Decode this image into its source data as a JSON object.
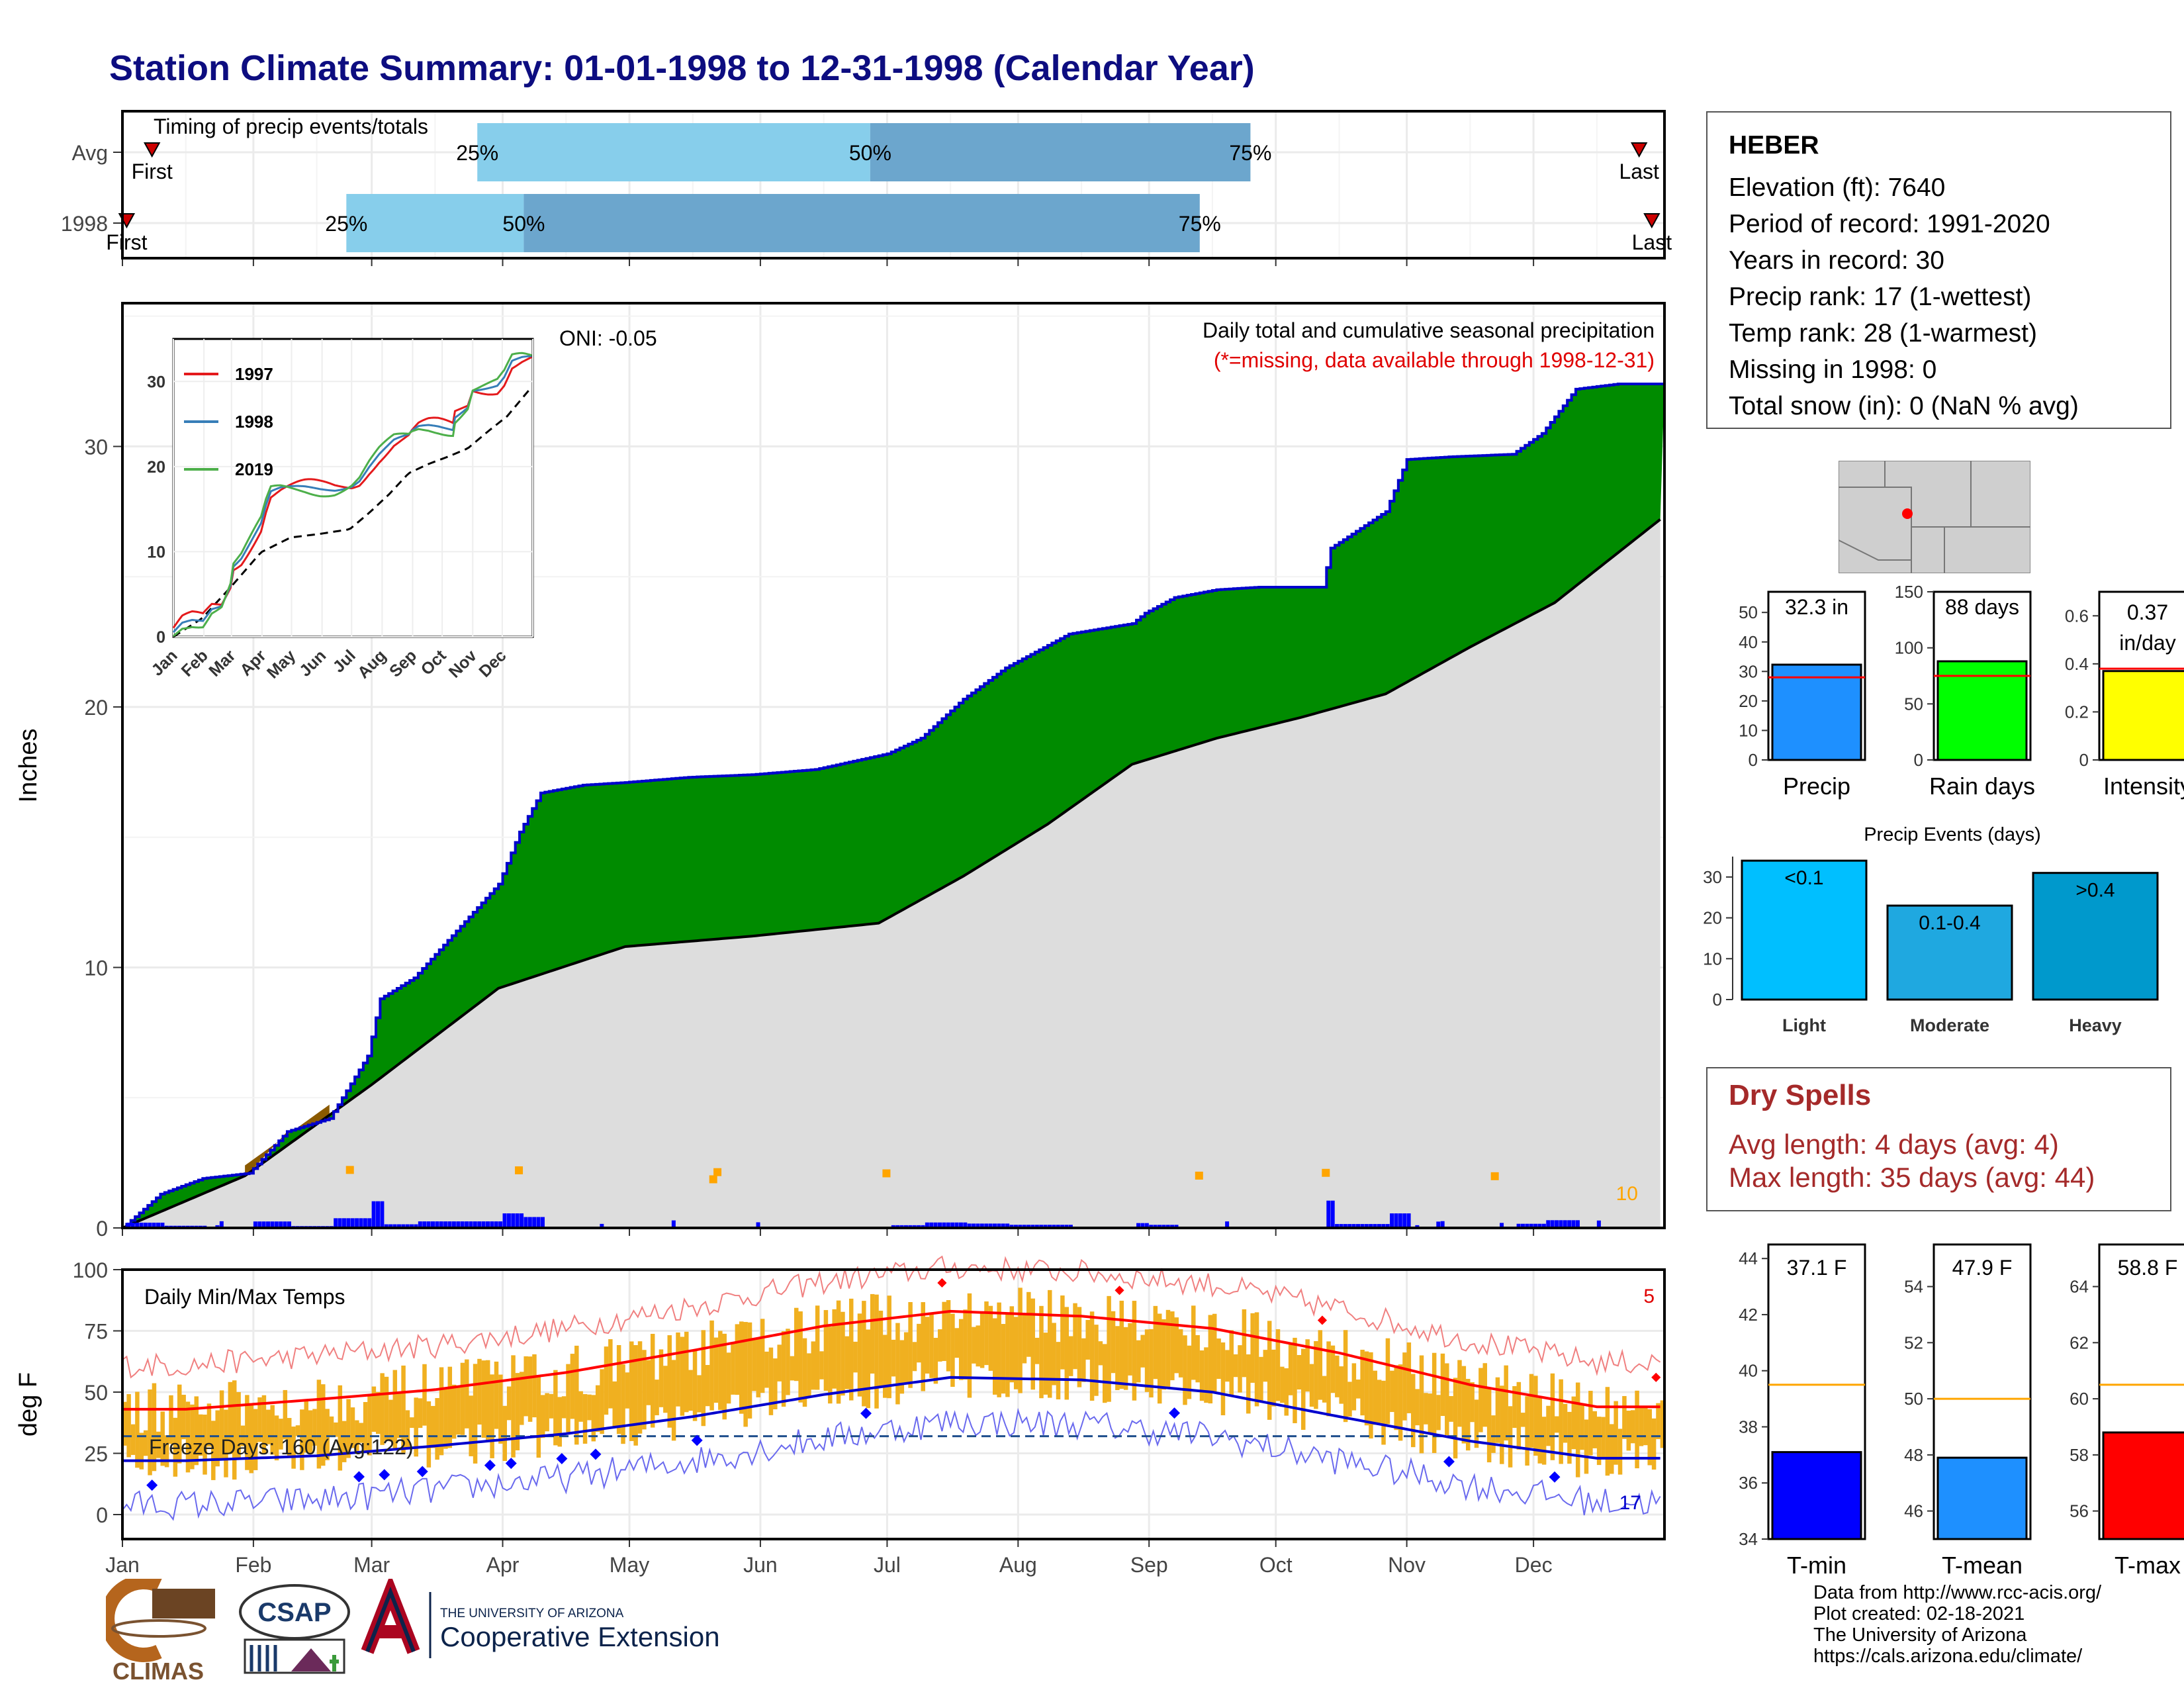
{
  "title": "Station Climate Summary: 01-01-1998 to 12-31-1998 (Calendar Year)",
  "timing_panel": {
    "label": "Timing of precip events/totals",
    "rows": [
      {
        "name": "Avg",
        "first_label": "First",
        "last_label": "Last",
        "first_doy": 8,
        "last_doy": 360,
        "p25_doy": 85,
        "p50_doy": 178,
        "p75_doy": 268,
        "p25_label": "25%",
        "p50_label": "50%",
        "p75_label": "75%"
      },
      {
        "name": "1998",
        "first_label": "First",
        "last_label": "Last",
        "first_doy": 2,
        "last_doy": 363,
        "p25_doy": 54,
        "p50_doy": 96,
        "p75_doy": 256,
        "p25_label": "25%",
        "p50_label": "50%",
        "p75_label": "75%"
      }
    ],
    "colors": {
      "light": "#87ceeb",
      "dark": "#6ca6cd",
      "marker": "#cc0000"
    }
  },
  "precip_panel": {
    "ylabel": "Inches",
    "yticks": [
      0,
      10,
      20,
      30
    ],
    "ylim": [
      0,
      35.5
    ],
    "label_right": "Daily total and cumulative seasonal precipitation",
    "missing_note": "(*=missing, data available through 1998-12-31)",
    "oni": "ONI: -0.05",
    "count_label": "10",
    "colors": {
      "surplus": "#008b00",
      "deficit": "#8b5a00",
      "normal": "#dddddd",
      "line_obs": "#0000cd",
      "bars": "#0000ff",
      "markers": "#ffa500"
    }
  },
  "inset_chart": {
    "yticks": [
      0,
      10,
      20,
      30
    ],
    "months": [
      "Jan",
      "Feb",
      "Mar",
      "Apr",
      "May",
      "Jun",
      "Jul",
      "Aug",
      "Sep",
      "Oct",
      "Nov",
      "Dec"
    ],
    "legend": [
      {
        "label": "1997",
        "color": "#e41a1c"
      },
      {
        "label": "1998",
        "color": "#377eb8"
      },
      {
        "label": "2019",
        "color": "#4daf4a"
      }
    ]
  },
  "temp_panel": {
    "label": "Daily Min/Max Temps",
    "ylabel": "deg F",
    "yticks": [
      0,
      25,
      50,
      75,
      100
    ],
    "ylim": [
      -10,
      100
    ],
    "freeze_label": "Freeze Days: 160 (Avg:122)",
    "freeze_line": 32,
    "count_hot": "5",
    "count_cold": "17",
    "colors": {
      "bars": "#f0b020",
      "max_avg": "#ff0000",
      "min_avg": "#0000cd",
      "rec_max": "#f08080",
      "rec_min": "#6a6aee"
    }
  },
  "months_axis": [
    "Jan",
    "Feb",
    "Mar",
    "Apr",
    "May",
    "Jun",
    "Jul",
    "Aug",
    "Sep",
    "Oct",
    "Nov",
    "Dec"
  ],
  "station": {
    "name": "HEBER",
    "lines": [
      "Elevation (ft): 7640",
      "Period of record: 1991-2020",
      "Years in record: 30",
      "Precip rank: 17 (1-wettest)",
      "Temp rank: 28 (1-warmest)",
      "Missing in 1998: 0",
      "Total snow (in): 0 (NaN % avg)"
    ]
  },
  "summary_bars": [
    {
      "label": "Precip",
      "value_label": "32.3 in",
      "value": 32.3,
      "avg": 28,
      "ylim": [
        0,
        57
      ],
      "yticks": [
        0,
        10,
        20,
        30,
        40,
        50
      ],
      "color": "#1e90ff"
    },
    {
      "label": "Rain days",
      "value_label": "88 days",
      "value": 88,
      "avg": 75,
      "ylim": [
        0,
        150
      ],
      "yticks": [
        0,
        50,
        100,
        150
      ],
      "color": "#00ff00"
    },
    {
      "label": "Intensity",
      "value_label": "0.37 in/day",
      "value": 0.37,
      "avg": 0.38,
      "ylim": [
        0,
        0.7
      ],
      "yticks": [
        0.0,
        0.2,
        0.4,
        0.6
      ],
      "color": "#ffff00"
    }
  ],
  "precip_events": {
    "title": "Precip Events (days)",
    "categories": [
      "Light",
      "Moderate",
      "Heavy"
    ],
    "bar_labels": [
      "<0.1",
      "0.1-0.4",
      ">0.4"
    ],
    "values": [
      34,
      23,
      31
    ],
    "yticks": [
      0,
      10,
      20,
      30
    ],
    "ylim": [
      0,
      35
    ],
    "colors": [
      "#00bfff",
      "#1fa8e0",
      "#0099cc"
    ]
  },
  "dry_spells": {
    "title": "Dry Spells",
    "avg_length": "Avg length: 4 days (avg: 4)",
    "max_length": "Max length: 35 days (avg: 44)"
  },
  "temp_bars": [
    {
      "label": "T-min",
      "value_label": "37.1 F",
      "value": 37.1,
      "avg": 39.5,
      "ylim": [
        34,
        44.5
      ],
      "yticks": [
        34,
        36,
        38,
        40,
        42,
        44
      ],
      "color": "#0000ff"
    },
    {
      "label": "T-mean",
      "value_label": "47.9 F",
      "value": 47.9,
      "avg": 50,
      "ylim": [
        45,
        55.5
      ],
      "yticks": [
        46,
        48,
        50,
        52,
        54
      ],
      "color": "#1e90ff"
    },
    {
      "label": "T-max",
      "value_label": "58.8 F",
      "value": 58.8,
      "avg": 60.5,
      "ylim": [
        55,
        65.5
      ],
      "yticks": [
        56,
        58,
        60,
        62,
        64
      ],
      "color": "#ff0000"
    }
  ],
  "credits": [
    "Data from http://www.rcc-acis.org/",
    "Plot created: 02-18-2021",
    "The University of Arizona",
    "https://cals.arizona.edu/climate/"
  ],
  "logos": {
    "climas": "CLIMAS",
    "csap": "CSAP",
    "ua_small": "THE UNIVERSITY OF ARIZONA",
    "ua_big": "Cooperative Extension"
  },
  "chart_data": {
    "type": "area",
    "title": "Station Climate Summary: 01-01-1998 to 12-31-1998 (Calendar Year)",
    "ylabel": "Inches",
    "ylim": [
      0,
      35.5
    ],
    "x_months": [
      "Jan",
      "Feb",
      "Mar",
      "Apr",
      "May",
      "Jun",
      "Jul",
      "Aug",
      "Sep",
      "Oct",
      "Nov",
      "Dec"
    ],
    "series": [
      {
        "name": "",
        "x_doy": [
          1,
          10,
          20,
          31,
          40,
          50,
          59,
          62,
          70,
          80,
          90,
          95,
          100,
          110,
          120,
          135,
          150,
          165,
          182,
          190,
          200,
          210,
          225,
          240,
          243,
          250,
          260,
          270,
          285,
          287,
          300,
          305,
          315,
          330,
          337,
          345,
          355,
          365
        ],
        "values": [
          0,
          1.3,
          1.9,
          2.1,
          3.7,
          4.2,
          6.6,
          8.8,
          9.6,
          11.4,
          13.2,
          15.2,
          16.7,
          17.0,
          17.1,
          17.3,
          17.4,
          17.6,
          18.2,
          18.8,
          20.3,
          21.5,
          22.8,
          23.2,
          23.6,
          24.2,
          24.5,
          24.6,
          24.6,
          26.1,
          27.5,
          29.5,
          29.6,
          29.7,
          30.5,
          32.2,
          32.4,
          32.4
        ]
      },
      {
        "name": "",
        "x_doy": [
          1,
          30,
          60,
          90,
          120,
          150,
          180,
          200,
          220,
          240,
          260,
          280,
          300,
          320,
          340,
          365
        ],
        "values": [
          0,
          2.0,
          5.5,
          9.2,
          10.8,
          11.2,
          11.7,
          13.5,
          15.5,
          17.8,
          18.8,
          19.6,
          20.5,
          22.3,
          24.0,
          27.2
        ]
      }
    ],
    "temperature": {
      "months": [
        "Jan",
        "Feb",
        "Mar",
        "Apr",
        "May",
        "Jun",
        "Jul",
        "Aug",
        "Sep",
        "Oct",
        "Nov",
        "Dec"
      ],
      "avg_max": [
        43,
        47,
        51,
        58,
        67,
        77,
        83,
        81,
        76,
        66,
        53,
        44
      ],
      "avg_min": [
        22,
        24,
        28,
        33,
        40,
        49,
        56,
        55,
        50,
        40,
        30,
        23
      ],
      "ylim": [
        -10,
        100
      ]
    }
  }
}
